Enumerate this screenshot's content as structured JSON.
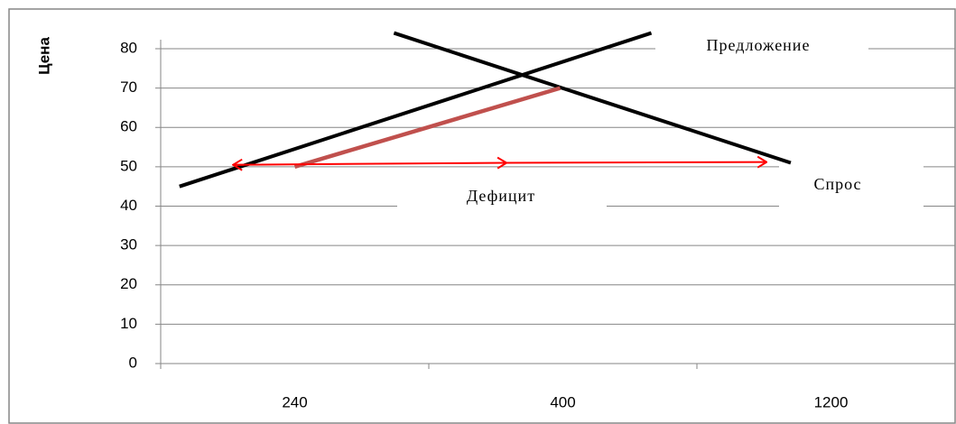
{
  "chart_data": {
    "type": "line",
    "ylabel": "Цена",
    "xlabel": "",
    "categories": [
      "240",
      "400",
      "1200"
    ],
    "ylim": [
      0,
      80
    ],
    "yticks": [
      0,
      10,
      20,
      30,
      40,
      50,
      60,
      70,
      80
    ],
    "grid": true,
    "series": [
      {
        "name": "Предложение",
        "points": [
          [
            0.07,
            45
          ],
          [
            1.83,
            84
          ]
        ],
        "color": "#000000"
      },
      {
        "name": "Спрос",
        "points": [
          [
            0.87,
            84
          ],
          [
            2.35,
            51
          ]
        ],
        "color": "#000000"
      },
      {
        "points": [
          [
            0.5,
            50
          ],
          [
            1.49,
            70
          ]
        ],
        "color": "#c0504d"
      }
    ],
    "arrow": {
      "from": [
        1.29,
        51
      ],
      "to_left": [
        0.27,
        50.5
      ],
      "to_right": [
        2.26,
        51.2
      ],
      "color": "#ff0000"
    },
    "annotations": {
      "supply_label": "Предложение",
      "demand_label": "Спрос",
      "deficit_label": "Дефицит"
    }
  }
}
